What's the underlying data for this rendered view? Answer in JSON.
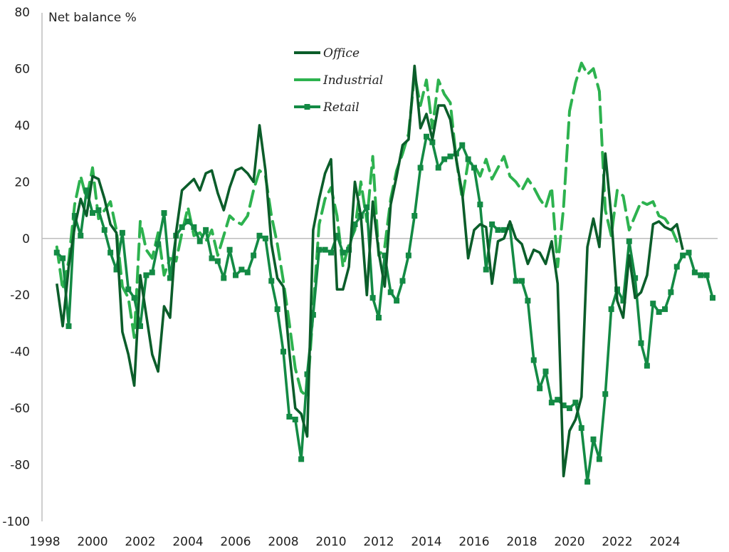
{
  "chart_data": {
    "type": "line",
    "title": "",
    "ylabel": "Net balance %",
    "xlabel": "",
    "ylim": [
      -100,
      80
    ],
    "xlim": [
      1998,
      2026
    ],
    "yticks": [
      80,
      60,
      40,
      20,
      0,
      -20,
      -40,
      -60,
      -80,
      -100
    ],
    "xticks": [
      "1998",
      "2000",
      "2002",
      "2004",
      "2006",
      "2008",
      "2010",
      "2012",
      "2014",
      "2016",
      "2018",
      "2020",
      "2022",
      "2024"
    ],
    "grid": false,
    "legend_position": "top-center",
    "x_start": 1998.5,
    "x_step": 0.25,
    "series": [
      {
        "name": "Office",
        "color": "#0b5d2a",
        "style": "solid",
        "values": [
          -16,
          -31,
          -10,
          4,
          14,
          8,
          22,
          21,
          14,
          5,
          2,
          -33,
          -41,
          -52,
          -13,
          -27,
          -41,
          -47,
          -24,
          -28,
          2,
          17,
          19,
          21,
          17,
          23,
          24,
          16,
          10,
          18,
          24,
          25,
          23,
          20,
          40,
          24,
          -2,
          -14,
          -17,
          -40,
          -60,
          -62,
          -70,
          3,
          14,
          23,
          28,
          -18,
          -18,
          -10,
          20,
          8,
          -20,
          13,
          -5,
          -17,
          12,
          22,
          33,
          35,
          61,
          39,
          44,
          35,
          47,
          47,
          42,
          28,
          16,
          -7,
          3,
          5,
          4,
          -16,
          -1,
          0,
          6,
          0,
          -2,
          -9,
          -4,
          -5,
          -9,
          -1,
          -16,
          -84,
          -68,
          -64,
          -56,
          -3,
          7,
          -3,
          30,
          8,
          -22,
          -28,
          -6,
          -21,
          -19,
          -13,
          5,
          6,
          4,
          3,
          5,
          -4
        ]
      },
      {
        "name": "Industrial",
        "color": "#2db24f",
        "style": "dashed",
        "values": [
          -3,
          -18,
          -8,
          12,
          22,
          14,
          25,
          7,
          10,
          13,
          3,
          -17,
          -21,
          -35,
          6,
          -4,
          -7,
          2,
          -13,
          -7,
          -8,
          2,
          11,
          1,
          2,
          -1,
          3,
          -6,
          1,
          8,
          6,
          5,
          8,
          17,
          24,
          22,
          8,
          -2,
          -15,
          -30,
          -46,
          -54,
          -56,
          -25,
          5,
          14,
          18,
          8,
          -10,
          -2,
          3,
          20,
          6,
          29,
          -6,
          -3,
          14,
          24,
          30,
          37,
          58,
          47,
          56,
          39,
          56,
          51,
          48,
          28,
          14,
          27,
          26,
          22,
          28,
          21,
          25,
          29,
          22,
          20,
          17,
          21,
          18,
          14,
          11,
          18,
          -10,
          11,
          45,
          55,
          62,
          58,
          60,
          52,
          10,
          1,
          17,
          15,
          3,
          8,
          13,
          12,
          13,
          8,
          7,
          4,
          -1
        ]
      },
      {
        "name": "Retail",
        "color": "#138a44",
        "style": "markers",
        "values": [
          -5,
          -7,
          -31,
          8,
          1,
          17,
          9,
          10,
          3,
          -5,
          -11,
          2,
          -18,
          -21,
          -31,
          -13,
          -12,
          -2,
          9,
          -14,
          1,
          4,
          6,
          4,
          -1,
          3,
          -7,
          -8,
          -14,
          -4,
          -13,
          -11,
          -12,
          -6,
          1,
          0,
          -15,
          -25,
          -40,
          -63,
          -64,
          -78,
          -48,
          -27,
          -4,
          -4,
          -5,
          1,
          -5,
          -4,
          5,
          8,
          11,
          -21,
          -28,
          -6,
          -19,
          -22,
          -15,
          -6,
          8,
          25,
          36,
          34,
          25,
          28,
          29,
          30,
          33,
          28,
          25,
          12,
          -11,
          5,
          3,
          3,
          4,
          -15,
          -15,
          -22,
          -43,
          -53,
          -47,
          -58,
          -57,
          -59,
          -60,
          -58,
          -67,
          -86,
          -71,
          -78,
          -55,
          -25,
          -18,
          -22,
          -1,
          -14,
          -37,
          -45,
          -23,
          -26,
          -25,
          -19,
          -10,
          -6,
          -5,
          -12,
          -13,
          -13,
          -21
        ]
      }
    ]
  }
}
